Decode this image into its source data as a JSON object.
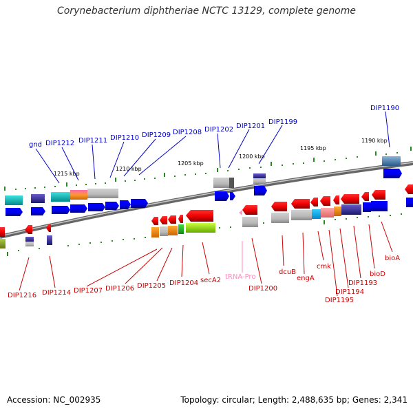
{
  "title": "Corynebacterium diphtheriae NCTC 13129, complete genome",
  "footer": {
    "accession": "Accession: NC_002935",
    "topology": "Topology: circular; Length: 2,488,635 bp; Genes: 2,341"
  },
  "colors": {
    "upper_label": "#0000cc",
    "lower_label": "#cc0000",
    "trna_label": "#ff88bb",
    "tick": "#228b22",
    "backbone": "#808080"
  },
  "kbp_ticks": [
    "1190 kbp",
    "1195 kbp",
    "1200 kbp",
    "1205 kbp",
    "1210 kbp",
    "1215 kbp"
  ],
  "upper_labels": [
    "DIP1190",
    "DIP1199",
    "DIP1201",
    "DIP1202",
    "DIP1208",
    "DIP1209",
    "DIP1210",
    "DIP1211",
    "DIP1212",
    "gnd"
  ],
  "lower_labels": [
    "bioA",
    "bioD",
    "DIP1193",
    "DIP1194",
    "DIP1195",
    "cmk",
    "engA",
    "dcuB",
    "DIP1200",
    "tRNA-Pro",
    "secA2",
    "DIP1204",
    "DIP1205",
    "DIP1206",
    "DIP1207",
    "DIP1214",
    "DIP1216"
  ]
}
